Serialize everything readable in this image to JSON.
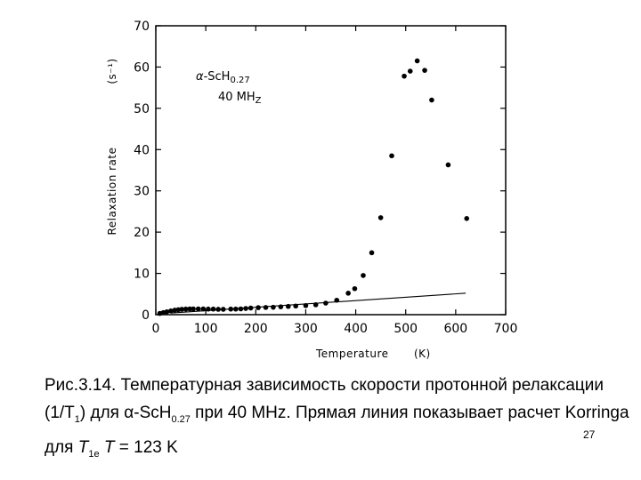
{
  "chart_data": {
    "type": "scatter",
    "xlabel": "Temperature",
    "xunit": "(K)",
    "ylabel": "Relaxation rate",
    "yunit": "(s⁻¹)",
    "xlim": [
      0,
      700
    ],
    "ylim": [
      0,
      70
    ],
    "xticks": [
      0,
      100,
      200,
      300,
      400,
      500,
      600,
      700
    ],
    "yticks": [
      0,
      10,
      20,
      30,
      40,
      50,
      60,
      70
    ],
    "annotation": {
      "line1_alpha": "α",
      "line1_rest": "-ScH",
      "line1_sub": "0.27",
      "line2": "40 MH",
      "line2_sub": "Z"
    },
    "series": [
      {
        "points": [
          [
            8,
            0.3
          ],
          [
            15,
            0.5
          ],
          [
            22,
            0.7
          ],
          [
            30,
            0.9
          ],
          [
            38,
            1.1
          ],
          [
            45,
            1.2
          ],
          [
            52,
            1.3
          ],
          [
            60,
            1.35
          ],
          [
            68,
            1.4
          ],
          [
            75,
            1.4
          ],
          [
            85,
            1.4
          ],
          [
            95,
            1.4
          ],
          [
            105,
            1.35
          ],
          [
            115,
            1.35
          ],
          [
            125,
            1.3
          ],
          [
            135,
            1.3
          ],
          [
            150,
            1.35
          ],
          [
            160,
            1.35
          ],
          [
            170,
            1.4
          ],
          [
            180,
            1.5
          ],
          [
            190,
            1.6
          ],
          [
            205,
            1.7
          ],
          [
            220,
            1.75
          ],
          [
            235,
            1.8
          ],
          [
            250,
            1.9
          ],
          [
            265,
            2.0
          ],
          [
            280,
            2.1
          ],
          [
            300,
            2.2
          ],
          [
            320,
            2.4
          ],
          [
            340,
            2.8
          ],
          [
            362,
            3.5
          ],
          [
            385,
            5.2
          ],
          [
            398,
            6.3
          ],
          [
            415,
            9.5
          ],
          [
            432,
            15.0
          ],
          [
            450,
            23.5
          ],
          [
            472,
            38.5
          ],
          [
            497,
            57.8
          ],
          [
            509,
            59.0
          ],
          [
            523,
            61.5
          ],
          [
            538,
            59.2
          ],
          [
            552,
            52.0
          ],
          [
            585,
            36.3
          ],
          [
            622,
            23.3
          ]
        ]
      }
    ],
    "korringa_line": {
      "x": [
        30,
        620
      ],
      "y": [
        0.4,
        5.2
      ]
    }
  },
  "caption": {
    "part1": "Рис.3.14. Температурная зависимость скорости протонной релаксации (1/T",
    "sub1": "1",
    "part2": ") для ",
    "alpha": "α",
    "part3": "-ScH",
    "sub2": "0.27",
    "part4": " при 40 MHz. Прямая линия показывает расчет Korringa для ",
    "T1e": "T",
    "sub3": "1e",
    "part5": " ",
    "T": "T",
    "part6": " = 123 K"
  },
  "page_number": "27"
}
